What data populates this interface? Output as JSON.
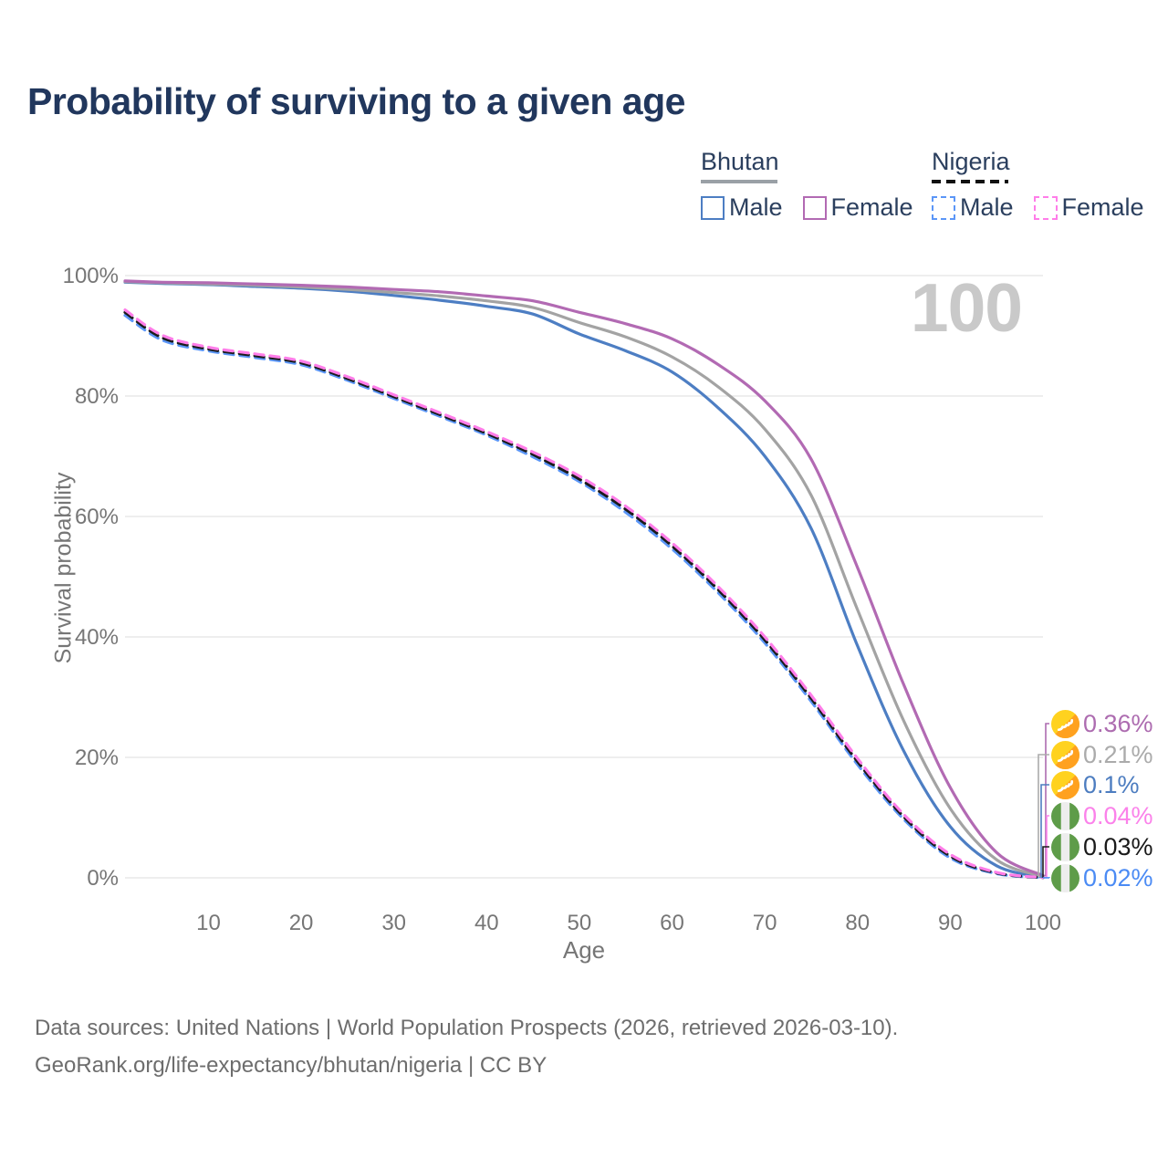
{
  "title": "Probability of surviving to a given age",
  "watermark": "100",
  "legend": {
    "groups": [
      {
        "label": "Bhutan",
        "line_style": "solid",
        "items": [
          {
            "label": "Male",
            "color": "#4d7ec3"
          },
          {
            "label": "Female",
            "color": "#b26ab3"
          }
        ]
      },
      {
        "label": "Nigeria",
        "line_style": "dashed",
        "items": [
          {
            "label": "Male",
            "color": "#5b96f7"
          },
          {
            "label": "Female",
            "color": "#ff7de9"
          }
        ]
      }
    ]
  },
  "axes": {
    "y": {
      "title": "Survival probability",
      "tick_labels": [
        "0%",
        "20%",
        "40%",
        "60%",
        "80%",
        "100%"
      ],
      "tick_values": [
        0,
        20,
        40,
        60,
        80,
        100
      ]
    },
    "x": {
      "title": "Age",
      "tick_values": [
        10,
        20,
        30,
        40,
        50,
        60,
        70,
        80,
        90,
        100
      ]
    }
  },
  "end_labels": [
    {
      "value": "0.36%",
      "flag": "bhutan",
      "color": "#ad6cb0"
    },
    {
      "value": "0.21%",
      "flag": "bhutan",
      "color": "#ababab"
    },
    {
      "value": "0.1%",
      "flag": "bhutan",
      "color": "#4d7dc0"
    },
    {
      "value": "0.04%",
      "flag": "nigeria",
      "color": "#fb82ea"
    },
    {
      "value": "0.03%",
      "flag": "nigeria",
      "color": "#1a1a1a"
    },
    {
      "value": "0.02%",
      "flag": "nigeria",
      "color": "#4b8bf4"
    }
  ],
  "flag_colors": {
    "bhutan_yellow": "#ffd21f",
    "bhutan_orange": "#ffa11f",
    "nigeria_green": "#5e9c49",
    "nigeria_white": "#ededed"
  },
  "chart_data": {
    "type": "line",
    "title": "Probability of surviving to a given age",
    "xlabel": "Age",
    "ylabel": "Survival probability",
    "xlim": [
      1,
      100
    ],
    "ylim": [
      0,
      100
    ],
    "grid": "horizontal",
    "x": [
      1,
      5,
      10,
      15,
      20,
      25,
      30,
      35,
      40,
      45,
      50,
      55,
      60,
      65,
      70,
      75,
      80,
      85,
      90,
      95,
      100
    ],
    "series": [
      {
        "name": "Bhutan Male",
        "country": "Bhutan",
        "sex": "male",
        "line": "solid",
        "color": "#4d7ec3",
        "end_label": "0.1%",
        "values": [
          98.9,
          98.7,
          98.5,
          98.2,
          97.9,
          97.4,
          96.7,
          95.9,
          94.9,
          93.6,
          90.3,
          87.5,
          84.0,
          78.0,
          70.0,
          58.0,
          38.5,
          21.0,
          8.5,
          2.0,
          0.1
        ]
      },
      {
        "name": "Bhutan Both sexes",
        "country": "Bhutan",
        "sex": "both",
        "line": "solid",
        "color": "#a3a3a3",
        "end_label": "0.21%",
        "values": [
          99.0,
          98.8,
          98.6,
          98.4,
          98.1,
          97.7,
          97.2,
          96.6,
          95.8,
          94.7,
          92.2,
          89.8,
          86.5,
          81.5,
          74.5,
          63.5,
          44.5,
          26.0,
          11.5,
          3.0,
          0.21
        ]
      },
      {
        "name": "Bhutan Female",
        "country": "Bhutan",
        "sex": "female",
        "line": "solid",
        "color": "#b26ab3",
        "end_label": "0.36%",
        "values": [
          99.1,
          98.9,
          98.8,
          98.6,
          98.4,
          98.1,
          97.7,
          97.3,
          96.6,
          95.8,
          93.9,
          92.0,
          89.5,
          85.2,
          79.2,
          69.5,
          51.5,
          32.0,
          15.0,
          4.2,
          0.36
        ]
      },
      {
        "name": "Nigeria Male",
        "country": "Nigeria",
        "sex": "male",
        "line": "dashed",
        "color": "#5b96f7",
        "end_label": "0.02%",
        "values": [
          93.4,
          89.3,
          87.5,
          86.4,
          85.2,
          82.6,
          79.6,
          76.6,
          73.5,
          69.9,
          65.8,
          60.7,
          54.6,
          47.3,
          39.0,
          29.3,
          18.8,
          9.7,
          3.3,
          0.7,
          0.02
        ]
      },
      {
        "name": "Nigeria Both sexes",
        "country": "Nigeria",
        "sex": "both",
        "line": "dashed",
        "color": "#1b1b1b",
        "end_label": "0.03%",
        "values": [
          93.9,
          89.7,
          87.8,
          86.7,
          85.5,
          82.9,
          79.9,
          76.9,
          73.8,
          70.3,
          66.2,
          61.2,
          55.1,
          47.8,
          39.5,
          29.8,
          19.3,
          10.1,
          3.6,
          0.8,
          0.03
        ]
      },
      {
        "name": "Nigeria Female",
        "country": "Nigeria",
        "sex": "female",
        "line": "dashed",
        "color": "#ff7de9",
        "end_label": "0.04%",
        "values": [
          94.3,
          90.1,
          88.1,
          87.0,
          85.8,
          83.2,
          80.2,
          77.2,
          74.1,
          70.7,
          66.7,
          61.7,
          55.6,
          48.3,
          40.0,
          30.3,
          19.8,
          10.5,
          3.9,
          0.9,
          0.04
        ]
      }
    ]
  },
  "footer": {
    "line1": "Data sources: United Nations | World Population Prospects (2026, retrieved 2026-03-10).",
    "line2": "GeoRank.org/life-expectancy/bhutan/nigeria | CC BY"
  }
}
